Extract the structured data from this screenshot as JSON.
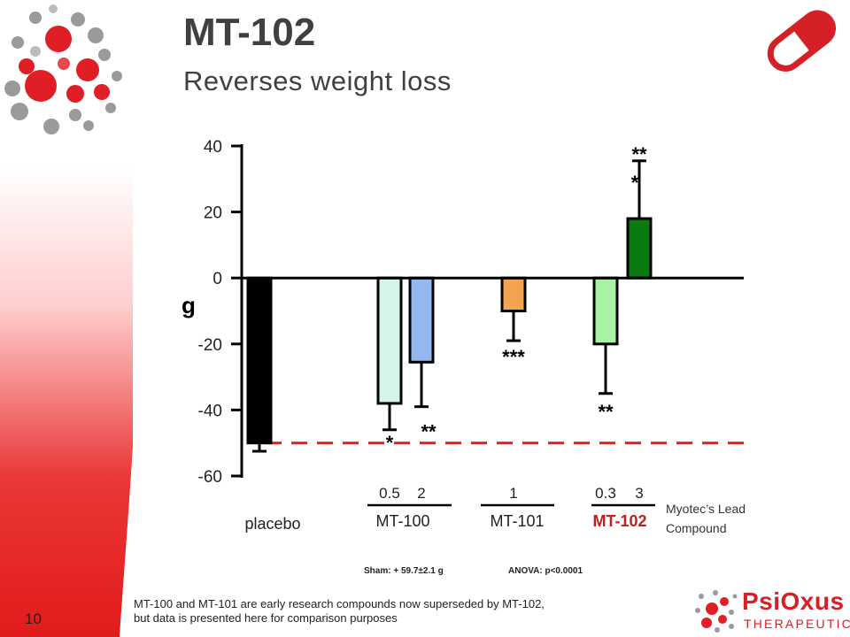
{
  "slide": {
    "title": "MT-102",
    "subtitle": "Reverses weight loss",
    "slide_number": "10",
    "footnote_line1": "MT-100 and MT-101 are early research compounds now superseded by MT-102,",
    "footnote_line2": "but data is presented here for comparison purposes",
    "sham_note": "Sham: + 59.7±2.1 g",
    "anova_note": "ANOVA: p<0.0001",
    "lead_compound_line1": "Myotec’s Lead",
    "lead_compound_line2": "Compound",
    "company_name": "PsiOxus",
    "company_tagline": "THERAPEUTICS"
  },
  "colors": {
    "brand_red": "#d62027",
    "mt102_label": "#c0201f",
    "reference_line": "#e21b1b"
  },
  "icons": {
    "top_left": "dot-swirl-logo",
    "top_right": "capsule-pill-icon",
    "bottom_right": "psioxus-dot-logo"
  },
  "chart_data": {
    "type": "bar",
    "title": "",
    "ylabel": "g",
    "xlabel": "",
    "ylim": [
      -60,
      40
    ],
    "yticks": [
      "40",
      "20",
      "0",
      "-20",
      "-40",
      "-60"
    ],
    "grid": false,
    "bars": [
      {
        "group": "placebo",
        "dose": "",
        "value": -50,
        "error": 2.5,
        "significance": "",
        "color": "#000000"
      },
      {
        "group": "MT-100",
        "dose": "0.5",
        "value": -38,
        "error": 8,
        "significance": "*",
        "color": "#d5f5e8"
      },
      {
        "group": "MT-100",
        "dose": "2",
        "value": -25.5,
        "error": 13.5,
        "significance": "**",
        "color": "#92b8ef"
      },
      {
        "group": "MT-101",
        "dose": "1",
        "value": -10,
        "error": 9,
        "significance": "***",
        "color": "#f4a350"
      },
      {
        "group": "MT-102",
        "dose": "0.3",
        "value": -20,
        "error": 15,
        "significance": "**",
        "color": "#a8f2a4"
      },
      {
        "group": "MT-102",
        "dose": "3",
        "value": 18,
        "error": 17.5,
        "significance": "***",
        "color": "#0a7a12"
      }
    ],
    "reference_line": {
      "value": -50
    },
    "groups": [
      {
        "label": "placebo",
        "underlined": false
      },
      {
        "label": "MT-100",
        "underlined": true
      },
      {
        "label": "MT-101",
        "underlined": true
      },
      {
        "label": "MT-102",
        "underlined": true
      }
    ]
  }
}
